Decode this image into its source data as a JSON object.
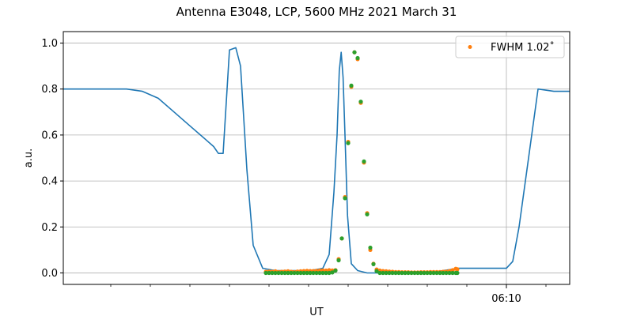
{
  "chart_data": {
    "type": "line",
    "title": "Antenna E3048, LCP, 5600 MHz 2021 March 31",
    "xlabel": "UT",
    "ylabel": "a.u.",
    "ylim": [
      -0.05,
      1.05
    ],
    "yticks": [
      0.0,
      0.2,
      0.4,
      0.6,
      0.8,
      1.0
    ],
    "ytick_labels": [
      "0.0",
      "0.2",
      "0.4",
      "0.6",
      "0.8",
      "1.0"
    ],
    "xlim": [
      "05:56",
      "06:12"
    ],
    "xtick_major": [
      {
        "t": "06:10",
        "label": "06:10"
      }
    ],
    "xtick_minor": [
      "05:57.5",
      "05:58.75",
      "06:00",
      "06:01.25",
      "06:02.5",
      "06:03.75",
      "06:05",
      "06:06.25",
      "06:07.5",
      "06:08.75",
      "06:11.25"
    ],
    "grid": true,
    "legend": {
      "position": "top-right",
      "entries": [
        {
          "label": "FWHM 1.02$^\\circ$",
          "display": "FWHM 1.02˚",
          "color": "#ff7f0e"
        }
      ]
    },
    "colors": {
      "line": "#1f77b4",
      "orange": "#ff7f0e",
      "green": "#2ca02c",
      "grid": "#b0b0b0"
    },
    "series": [
      {
        "kind": "line",
        "color": "#1f77b4",
        "x": [
          "05:56.00",
          "05:56.50",
          "05:57.00",
          "05:57.50",
          "05:58.00",
          "05:58.50",
          "05:59.00",
          "05:59.50",
          "06:00.00",
          "06:00.50",
          "06:00.75",
          "06:00.90",
          "06:01.05",
          "06:01.25",
          "06:01.45",
          "06:01.60",
          "06:01.80",
          "06:02.00",
          "06:02.30",
          "06:02.70",
          "06:03.00",
          "06:03.40",
          "06:03.80",
          "06:04.20",
          "06:04.40",
          "06:04.55",
          "06:04.65",
          "06:04.72",
          "06:04.78",
          "06:04.84",
          "06:04.90",
          "06:04.98",
          "06:05.10",
          "06:05.30",
          "06:05.60",
          "06:06.00",
          "06:06.50",
          "06:07.00",
          "06:07.50",
          "06:08.00",
          "06:08.50",
          "06:09.00",
          "06:09.50",
          "06:10.00",
          "06:10.20",
          "06:10.40",
          "06:10.60",
          "06:10.80",
          "06:11.00",
          "06:11.50",
          "06:12.00"
        ],
        "y": [
          0.8,
          0.8,
          0.8,
          0.8,
          0.8,
          0.79,
          0.76,
          0.7,
          0.64,
          0.58,
          0.55,
          0.52,
          0.52,
          0.97,
          0.98,
          0.9,
          0.45,
          0.12,
          0.02,
          0.01,
          0.01,
          0.01,
          0.01,
          0.02,
          0.08,
          0.35,
          0.6,
          0.88,
          0.96,
          0.85,
          0.6,
          0.25,
          0.04,
          0.01,
          0.0,
          0.0,
          0.0,
          0.0,
          0.0,
          0.01,
          0.02,
          0.02,
          0.02,
          0.02,
          0.05,
          0.2,
          0.4,
          0.6,
          0.8,
          0.79,
          0.79
        ]
      },
      {
        "kind": "scatter",
        "color": "#ff7f0e",
        "x": [
          "06:02.40",
          "06:02.50",
          "06:02.60",
          "06:02.70",
          "06:02.80",
          "06:02.90",
          "06:03.00",
          "06:03.10",
          "06:03.20",
          "06:03.30",
          "06:03.40",
          "06:03.50",
          "06:03.60",
          "06:03.70",
          "06:03.80",
          "06:03.90",
          "06:04.00",
          "06:04.10",
          "06:04.20",
          "06:04.30",
          "06:04.40",
          "06:04.50",
          "06:04.60",
          "06:04.70",
          "06:04.80",
          "06:04.90",
          "06:05.00",
          "06:05.10",
          "06:05.20",
          "06:05.30",
          "06:05.40",
          "06:05.50",
          "06:05.60",
          "06:05.70",
          "06:05.80",
          "06:05.90",
          "06:06.00",
          "06:06.10",
          "06:06.20",
          "06:06.30",
          "06:06.40",
          "06:06.50",
          "06:06.60",
          "06:06.70",
          "06:06.80",
          "06:06.90",
          "06:07.00",
          "06:07.10",
          "06:07.20",
          "06:07.30",
          "06:07.40",
          "06:07.50",
          "06:07.60",
          "06:07.70",
          "06:07.80",
          "06:07.90",
          "06:08.00",
          "06:08.10",
          "06:08.20",
          "06:08.30",
          "06:08.40",
          "06:08.45"
        ],
        "y": [
          0.005,
          0.006,
          0.005,
          0.007,
          0.004,
          0.005,
          0.006,
          0.007,
          0.005,
          0.004,
          0.006,
          0.007,
          0.008,
          0.009,
          0.008,
          0.008,
          0.009,
          0.01,
          0.011,
          0.01,
          0.012,
          0.011,
          0.012,
          0.06,
          0.15,
          0.33,
          0.57,
          0.81,
          0.96,
          0.93,
          0.74,
          0.48,
          0.26,
          0.1,
          0.04,
          0.015,
          0.01,
          0.008,
          0.007,
          0.006,
          0.005,
          0.004,
          0.004,
          0.003,
          0.003,
          0.003,
          0.002,
          0.002,
          0.002,
          0.003,
          0.003,
          0.003,
          0.004,
          0.004,
          0.004,
          0.004,
          0.005,
          0.006,
          0.008,
          0.012,
          0.018,
          0.016
        ]
      },
      {
        "kind": "scatter",
        "color": "#2ca02c",
        "x": [
          "06:02.40",
          "06:02.50",
          "06:02.60",
          "06:02.70",
          "06:02.80",
          "06:02.90",
          "06:03.00",
          "06:03.10",
          "06:03.20",
          "06:03.30",
          "06:03.40",
          "06:03.50",
          "06:03.60",
          "06:03.70",
          "06:03.80",
          "06:03.90",
          "06:04.00",
          "06:04.10",
          "06:04.20",
          "06:04.30",
          "06:04.40",
          "06:04.50",
          "06:04.60",
          "06:04.70",
          "06:04.80",
          "06:04.90",
          "06:05.00",
          "06:05.10",
          "06:05.20",
          "06:05.30",
          "06:05.40",
          "06:05.50",
          "06:05.60",
          "06:05.70",
          "06:05.80",
          "06:05.90",
          "06:06.00",
          "06:06.10",
          "06:06.20",
          "06:06.30",
          "06:06.40",
          "06:06.50",
          "06:06.60",
          "06:06.70",
          "06:06.80",
          "06:06.90",
          "06:07.00",
          "06:07.10",
          "06:07.20",
          "06:07.30",
          "06:07.40",
          "06:07.50",
          "06:07.60",
          "06:07.70",
          "06:07.80",
          "06:07.90",
          "06:08.00",
          "06:08.10",
          "06:08.20",
          "06:08.30",
          "06:08.40",
          "06:08.45"
        ],
        "y": [
          0.0,
          0.0,
          0.0,
          0.0,
          0.0,
          0.0,
          0.0,
          0.0,
          0.0,
          0.0,
          0.0,
          0.0,
          0.0,
          0.0,
          0.0,
          0.0,
          0.0,
          0.0,
          0.0,
          0.0,
          0.0,
          0.002,
          0.01,
          0.055,
          0.15,
          0.325,
          0.565,
          0.815,
          0.96,
          0.935,
          0.745,
          0.485,
          0.255,
          0.11,
          0.038,
          0.008,
          0.0,
          0.0,
          0.0,
          0.0,
          0.0,
          0.0,
          0.0,
          0.0,
          0.0,
          0.0,
          0.0,
          0.0,
          0.0,
          0.0,
          0.0,
          0.0,
          0.0,
          0.0,
          0.0,
          0.0,
          0.0,
          0.0,
          0.0,
          0.0,
          0.0,
          0.0
        ]
      }
    ]
  }
}
